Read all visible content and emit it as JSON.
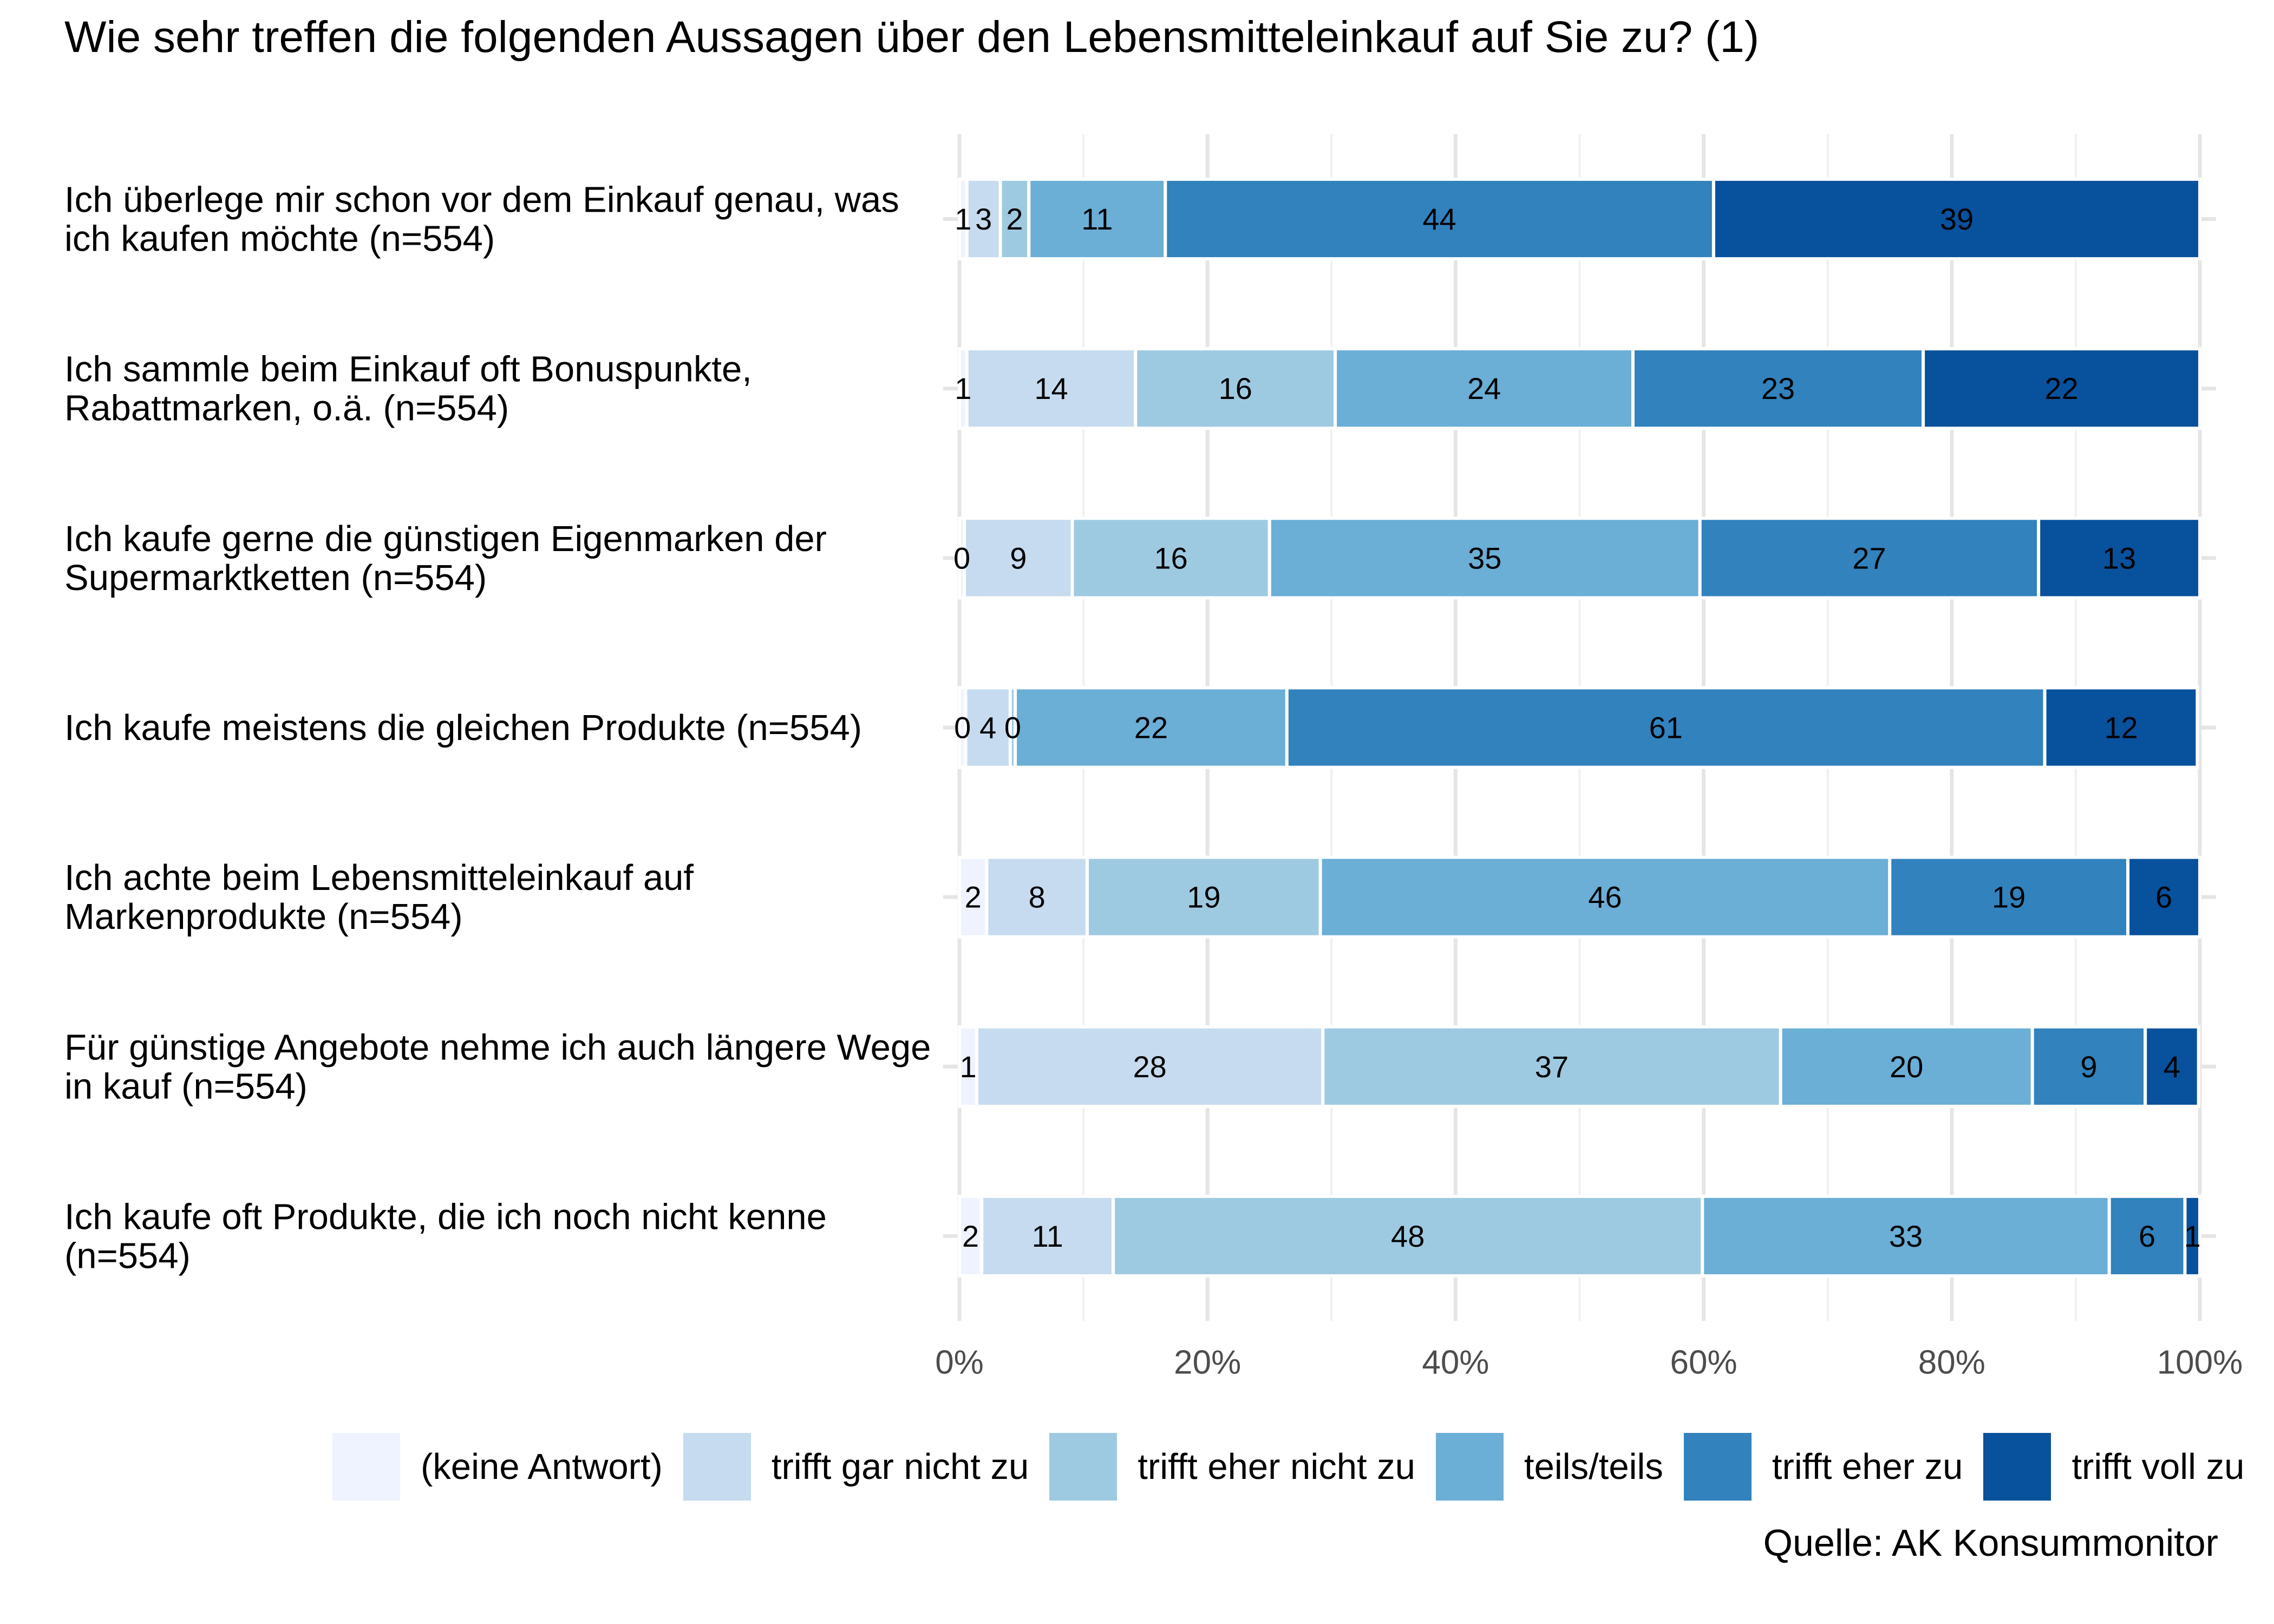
{
  "title": "Wie sehr treffen die folgenden Aussagen über den Lebensmitteleinkauf auf Sie zu? (1)",
  "source": "Quelle: AK Konsummonitor",
  "chart_data": {
    "type": "bar",
    "orientation": "horizontal",
    "stacked": true,
    "normalized": true,
    "xlim": [
      0,
      100
    ],
    "x_ticks": [
      "0%",
      "20%",
      "40%",
      "60%",
      "80%",
      "100%"
    ],
    "x_tick_values": [
      0,
      20,
      40,
      60,
      80,
      100
    ],
    "grid": true,
    "legend_position": "bottom",
    "categories": [
      [
        "Ich überlege mir schon vor dem Einkauf genau, was",
        "ich kaufen möchte (n=554)"
      ],
      [
        "Ich sammle beim Einkauf oft Bonuspunkte,",
        "Rabattmarken, o.ä. (n=554)"
      ],
      [
        "Ich kaufe gerne die günstigen Eigenmarken der",
        "Supermarktketten (n=554)"
      ],
      [
        "Ich kaufe meistens die gleichen Produkte (n=554)"
      ],
      [
        "Ich achte beim Lebensmitteleinkauf auf",
        "Markenprodukte (n=554)"
      ],
      [
        "Für günstige Angebote nehme ich auch längere Wege",
        "in kauf (n=554)"
      ],
      [
        "Ich kaufe oft Produkte, die ich noch nicht kenne",
        "(n=554)"
      ]
    ],
    "series": [
      {
        "name": "(keine Antwort)",
        "color": "#eff3ff",
        "values": [
          0.6,
          0.6,
          0.4,
          0.5,
          2.2,
          1.4,
          1.8
        ]
      },
      {
        "name": "trifft gar nicht zu",
        "color": "#c6dbef",
        "values": [
          2.7,
          13.6,
          8.7,
          3.6,
          8.1,
          27.9,
          10.6
        ]
      },
      {
        "name": "trifft eher nicht zu",
        "color": "#9ecae1",
        "values": [
          2.3,
          16.1,
          15.9,
          0.4,
          18.8,
          36.9,
          47.5
        ]
      },
      {
        "name": "teils/teils",
        "color": "#6baed6",
        "values": [
          11.0,
          24.0,
          34.7,
          21.9,
          45.9,
          20.3,
          32.8
        ]
      },
      {
        "name": "trifft eher zu",
        "color": "#3182bd",
        "values": [
          44.2,
          23.4,
          27.3,
          61.1,
          19.2,
          9.1,
          6.1
        ]
      },
      {
        "name": "trifft voll zu",
        "color": "#08519c",
        "values": [
          39.2,
          22.3,
          13.0,
          12.3,
          5.8,
          4.3,
          1.2
        ]
      }
    ],
    "data_labels": [
      [
        "1",
        "3",
        "2",
        "11",
        "44",
        "39"
      ],
      [
        "1",
        "14",
        "16",
        "24",
        "23",
        "22"
      ],
      [
        "0",
        "9",
        "16",
        "35",
        "27",
        "13"
      ],
      [
        "0",
        "4",
        "0",
        "22",
        "61",
        "12"
      ],
      [
        "2",
        "8",
        "19",
        "46",
        "19",
        "6"
      ],
      [
        "1",
        "28",
        "37",
        "20",
        "9",
        "4"
      ],
      [
        "2",
        "11",
        "48",
        "33",
        "6",
        "1"
      ]
    ]
  }
}
